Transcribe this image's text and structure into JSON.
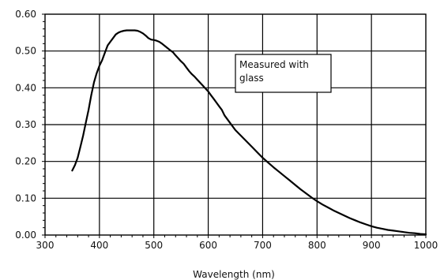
{
  "chart_data": {
    "type": "line",
    "title": "",
    "xlabel": "Wavelength (nm)",
    "ylabel": "",
    "xlim": [
      300,
      1000
    ],
    "ylim": [
      0,
      0.6
    ],
    "x_ticks": [
      300,
      400,
      500,
      600,
      700,
      800,
      900,
      1000
    ],
    "x_tick_labels": [
      "300",
      "400",
      "500",
      "600",
      "700",
      "800",
      "900",
      "1000"
    ],
    "y_ticks": [
      0,
      0.1,
      0.2,
      0.3,
      0.4,
      0.5,
      0.6
    ],
    "y_tick_labels": [
      "0.00",
      "0.10",
      "0.20",
      "0.30",
      "0.40",
      "0.50",
      "0.60"
    ],
    "grid": true,
    "line_color": "#000000",
    "grid_color": "#000000",
    "annotation": {
      "lines": [
        "Measured with",
        "glass"
      ]
    },
    "series": [
      {
        "x": [
          350,
          355,
          360,
          365,
          370,
          375,
          380,
          385,
          390,
          395,
          400,
          405,
          410,
          415,
          420,
          425,
          430,
          435,
          440,
          445,
          450,
          455,
          460,
          465,
          470,
          475,
          480,
          485,
          490,
          495,
          500,
          505,
          510,
          515,
          520,
          525,
          530,
          535,
          540,
          545,
          550,
          555,
          560,
          565,
          570,
          575,
          580,
          585,
          590,
          595,
          600,
          605,
          610,
          615,
          620,
          625,
          630,
          640,
          650,
          660,
          670,
          680,
          690,
          700,
          710,
          720,
          730,
          740,
          750,
          760,
          770,
          780,
          790,
          800,
          810,
          820,
          830,
          840,
          850,
          860,
          870,
          880,
          890,
          900,
          910,
          920,
          930,
          940,
          950,
          960,
          970,
          980,
          990,
          1000
        ],
        "y": [
          0.175,
          0.19,
          0.21,
          0.24,
          0.27,
          0.305,
          0.34,
          0.38,
          0.415,
          0.44,
          0.46,
          0.475,
          0.495,
          0.515,
          0.525,
          0.535,
          0.545,
          0.55,
          0.553,
          0.555,
          0.556,
          0.556,
          0.556,
          0.556,
          0.555,
          0.552,
          0.548,
          0.542,
          0.535,
          0.531,
          0.53,
          0.528,
          0.525,
          0.52,
          0.514,
          0.508,
          0.502,
          0.497,
          0.488,
          0.48,
          0.472,
          0.465,
          0.455,
          0.445,
          0.437,
          0.43,
          0.422,
          0.414,
          0.406,
          0.398,
          0.39,
          0.38,
          0.37,
          0.36,
          0.35,
          0.34,
          0.325,
          0.305,
          0.285,
          0.27,
          0.255,
          0.24,
          0.225,
          0.21,
          0.197,
          0.184,
          0.172,
          0.16,
          0.148,
          0.136,
          0.124,
          0.113,
          0.102,
          0.092,
          0.083,
          0.075,
          0.067,
          0.06,
          0.053,
          0.046,
          0.04,
          0.034,
          0.029,
          0.024,
          0.02,
          0.017,
          0.014,
          0.012,
          0.01,
          0.008,
          0.006,
          0.005,
          0.003,
          0.002
        ]
      }
    ]
  }
}
